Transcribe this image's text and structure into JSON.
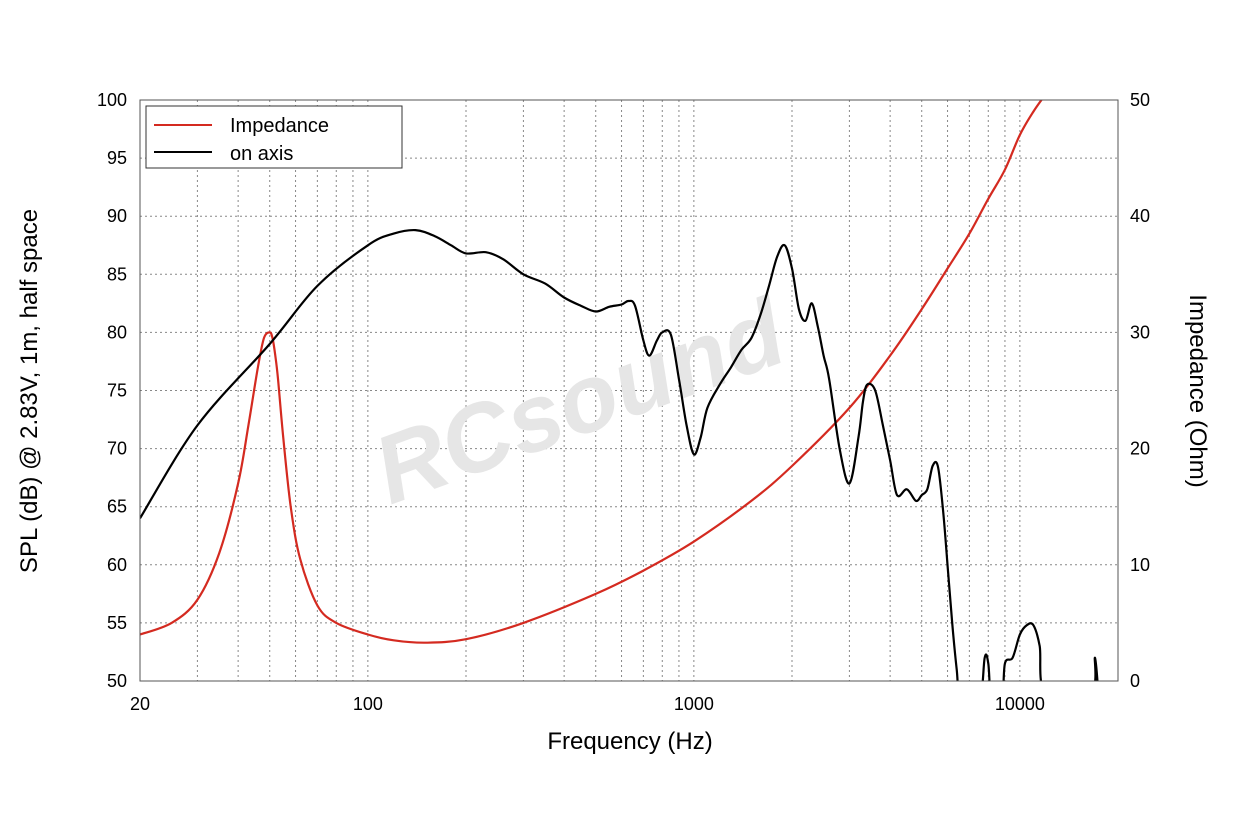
{
  "chart_data": {
    "type": "line",
    "xlabel": "Frequency (Hz)",
    "ylabel": "SPL (dB) @ 2.83V, 1m, half space",
    "y2label": "Impedance (Ohm)",
    "xscale": "log",
    "xlim": [
      20,
      20000
    ],
    "ylim": [
      50,
      100
    ],
    "y2lim": [
      0,
      50
    ],
    "xticks": [
      20,
      100,
      1000,
      10000
    ],
    "xtick_labels": [
      "20",
      "100",
      "1000",
      "10000"
    ],
    "yticks": [
      50,
      55,
      60,
      65,
      70,
      75,
      80,
      85,
      90,
      95,
      100
    ],
    "ytick_labels": [
      "50",
      "55",
      "60",
      "65",
      "70",
      "75",
      "80",
      "85",
      "90",
      "95",
      "100"
    ],
    "y2ticks": [
      0,
      10,
      20,
      30,
      40,
      50
    ],
    "y2tick_labels": [
      "0",
      "10",
      "20",
      "30",
      "40",
      "50"
    ],
    "grid": true,
    "legend_position": "top-left",
    "watermark": "RCsound",
    "series": [
      {
        "name": "Impedance",
        "axis": "right",
        "color": "#d42a20",
        "x": [
          20,
          25,
          30,
          35,
          40,
          43,
          46,
          48,
          50,
          51,
          52,
          53,
          55,
          58,
          62,
          70,
          80,
          100,
          120,
          150,
          200,
          300,
          500,
          700,
          1000,
          1500,
          2000,
          3000,
          4000,
          5000,
          6000,
          7000,
          8000,
          9000,
          10000,
          11000,
          12000
        ],
        "y": [
          4,
          5,
          7,
          11,
          17,
          22,
          27,
          29.5,
          30,
          29.5,
          28,
          26,
          21,
          15,
          10.5,
          6.5,
          5,
          4,
          3.5,
          3.3,
          3.6,
          5,
          7.5,
          9.5,
          12,
          15.5,
          18.5,
          23.5,
          28,
          32,
          35.5,
          38.5,
          41.5,
          44,
          47,
          49,
          50.5
        ]
      },
      {
        "name": "on axis",
        "axis": "left",
        "color": "#000000",
        "x": [
          20,
          30,
          50,
          70,
          100,
          120,
          140,
          160,
          180,
          200,
          230,
          260,
          300,
          350,
          400,
          450,
          500,
          550,
          600,
          630,
          660,
          700,
          730,
          770,
          800,
          850,
          900,
          950,
          1000,
          1050,
          1100,
          1200,
          1300,
          1400,
          1500,
          1600,
          1700,
          1800,
          1900,
          2000,
          2100,
          2200,
          2300,
          2400,
          2500,
          2600,
          2800,
          3000,
          3200,
          3300,
          3400,
          3600,
          3800,
          4000,
          4200,
          4500,
          4800,
          5000,
          5200,
          5400,
          5600,
          5800,
          6000,
          6200,
          6400,
          6600,
          7500,
          7800,
          8000,
          8200,
          8800,
          9000,
          9500,
          10000,
          10500,
          11000,
          11500,
          12000,
          16500,
          17000,
          17500
        ],
        "y": [
          64,
          72,
          79,
          84,
          87.5,
          88.5,
          88.8,
          88.3,
          87.5,
          86.8,
          86.9,
          86.3,
          85,
          84.2,
          83,
          82.3,
          81.8,
          82.2,
          82.4,
          82.7,
          82.3,
          79.3,
          78,
          79.3,
          80,
          79.8,
          76,
          72,
          69.5,
          71,
          73.5,
          75.5,
          77,
          78.5,
          79.5,
          81.5,
          84,
          86.5,
          87.5,
          85.5,
          82,
          81,
          82.5,
          80.5,
          78,
          76,
          70,
          67,
          71,
          74,
          75.5,
          75,
          72,
          69,
          66,
          66.5,
          65.5,
          66,
          66.5,
          68.5,
          68.5,
          65,
          60,
          55,
          51,
          48,
          48,
          52,
          51.5,
          48,
          48,
          51.5,
          52,
          54,
          54.8,
          54.8,
          53,
          49,
          49,
          52,
          48
        ]
      }
    ]
  }
}
